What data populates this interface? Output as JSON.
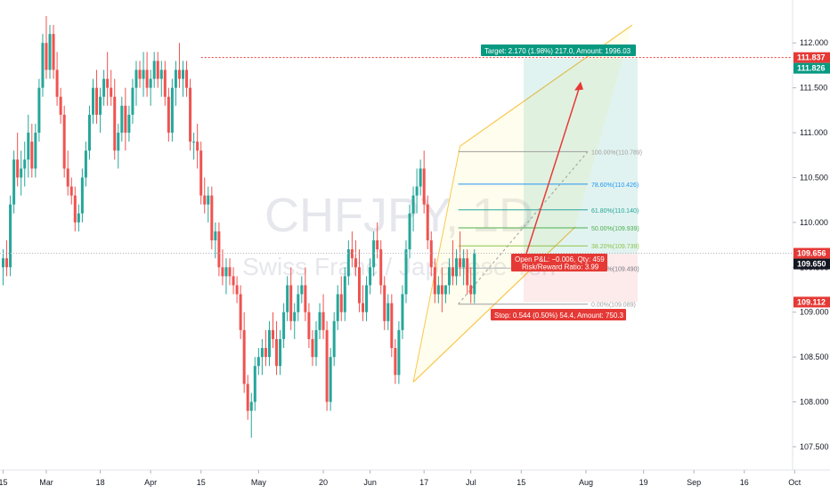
{
  "chart_data": {
    "type": "candlestick",
    "symbol_watermark": "CHFJPY, 1D",
    "watermark_subtitle": "Swiss Franc / Japanese Yen",
    "price_axis": {
      "min": 107.4,
      "max": 112.3,
      "ticks": [
        "112.000",
        "111.500",
        "111.000",
        "110.500",
        "110.000",
        "109.500",
        "109.000",
        "108.500",
        "108.000",
        "107.500"
      ]
    },
    "price_labels": [
      {
        "value": 111.837,
        "text": "111.837",
        "color": "#e53935"
      },
      {
        "value": 111.826,
        "text": "111.826",
        "color": "#089981"
      },
      {
        "value": 109.656,
        "text": "109.656",
        "color": "#e53935"
      },
      {
        "value": 109.65,
        "text": "109.650",
        "color": "#131722"
      },
      {
        "value": 109.112,
        "text": "109.112",
        "color": "#e53935"
      }
    ],
    "time_axis": {
      "labels": [
        {
          "text": "15",
          "bar": 0
        },
        {
          "text": "Mar",
          "bar": 12
        },
        {
          "text": "18",
          "bar": 27
        },
        {
          "text": "Apr",
          "bar": 41
        },
        {
          "text": "15",
          "bar": 55
        },
        {
          "text": "May",
          "bar": 71
        },
        {
          "text": "20",
          "bar": 89
        },
        {
          "text": "Jun",
          "bar": 102
        },
        {
          "text": "17",
          "bar": 117
        },
        {
          "text": "Jul",
          "bar": 130
        },
        {
          "text": "15",
          "bar": 144
        },
        {
          "text": "Aug",
          "bar": 162
        },
        {
          "text": "19",
          "bar": 178
        },
        {
          "text": "Sep",
          "bar": 192
        },
        {
          "text": "16",
          "bar": 206
        },
        {
          "text": "Oct",
          "bar": 220
        }
      ]
    },
    "candles": [
      [
        109.5,
        109.7,
        109.3,
        109.6
      ],
      [
        109.6,
        109.8,
        109.4,
        109.5
      ],
      [
        109.5,
        110.3,
        109.4,
        110.2
      ],
      [
        110.2,
        110.8,
        110.1,
        110.7
      ],
      [
        110.7,
        111.0,
        110.4,
        110.5
      ],
      [
        110.5,
        110.8,
        110.3,
        110.6
      ],
      [
        110.6,
        110.9,
        110.4,
        110.7
      ],
      [
        110.7,
        111.2,
        110.5,
        111.0
      ],
      [
        110.9,
        111.1,
        110.5,
        110.6
      ],
      [
        110.6,
        111.1,
        110.5,
        111.0
      ],
      [
        111.0,
        111.6,
        110.9,
        111.5
      ],
      [
        111.5,
        112.1,
        111.4,
        112.0
      ],
      [
        112.0,
        112.3,
        111.6,
        111.7
      ],
      [
        111.7,
        112.2,
        111.6,
        112.1
      ],
      [
        112.1,
        112.2,
        111.6,
        111.7
      ],
      [
        111.7,
        111.9,
        111.3,
        111.4
      ],
      [
        111.4,
        111.5,
        111.1,
        111.2
      ],
      [
        111.2,
        111.3,
        110.5,
        110.6
      ],
      [
        110.6,
        110.8,
        110.3,
        110.4
      ],
      [
        110.4,
        110.5,
        110.2,
        110.3
      ],
      [
        110.3,
        110.4,
        109.9,
        110.0
      ],
      [
        110.0,
        110.2,
        109.9,
        110.1
      ],
      [
        110.1,
        110.6,
        110.0,
        110.5
      ],
      [
        110.5,
        110.9,
        110.4,
        110.8
      ],
      [
        110.8,
        111.3,
        110.7,
        111.2
      ],
      [
        111.2,
        111.6,
        111.1,
        111.5
      ],
      [
        111.5,
        111.7,
        111.1,
        111.2
      ],
      [
        111.2,
        111.5,
        111.0,
        111.4
      ],
      [
        111.4,
        111.7,
        111.3,
        111.6
      ],
      [
        111.6,
        111.9,
        111.3,
        111.5
      ],
      [
        111.5,
        111.7,
        111.3,
        111.4
      ],
      [
        111.4,
        111.6,
        110.7,
        110.8
      ],
      [
        110.8,
        111.1,
        110.6,
        111.0
      ],
      [
        111.0,
        111.4,
        110.9,
        111.3
      ],
      [
        111.3,
        111.5,
        110.8,
        111.0
      ],
      [
        111.0,
        111.3,
        110.9,
        111.2
      ],
      [
        111.2,
        111.6,
        111.1,
        111.5
      ],
      [
        111.5,
        111.8,
        111.3,
        111.7
      ],
      [
        111.7,
        111.8,
        111.5,
        111.6
      ],
      [
        111.6,
        111.9,
        111.4,
        111.7
      ],
      [
        111.7,
        111.9,
        111.4,
        111.5
      ],
      [
        111.5,
        111.7,
        111.3,
        111.6
      ],
      [
        111.6,
        111.9,
        111.5,
        111.8
      ],
      [
        111.8,
        111.9,
        111.5,
        111.6
      ],
      [
        111.6,
        111.8,
        111.4,
        111.7
      ],
      [
        111.7,
        111.8,
        111.3,
        111.4
      ],
      [
        111.4,
        111.5,
        110.9,
        111.0
      ],
      [
        111.0,
        111.6,
        110.9,
        111.5
      ],
      [
        111.5,
        111.8,
        111.3,
        111.7
      ],
      [
        111.7,
        112.0,
        111.5,
        111.6
      ],
      [
        111.6,
        111.8,
        111.4,
        111.7
      ],
      [
        111.7,
        111.8,
        111.4,
        111.5
      ],
      [
        111.5,
        111.6,
        110.8,
        110.9
      ],
      [
        110.9,
        111.0,
        110.7,
        110.9
      ],
      [
        110.9,
        111.1,
        110.6,
        110.8
      ],
      [
        110.8,
        110.9,
        110.2,
        110.3
      ],
      [
        110.3,
        110.5,
        110.1,
        110.2
      ],
      [
        110.2,
        110.4,
        110.0,
        110.3
      ],
      [
        110.3,
        110.4,
        109.7,
        109.8
      ],
      [
        109.8,
        110.0,
        109.6,
        109.9
      ],
      [
        109.9,
        110.0,
        109.4,
        109.5
      ],
      [
        109.5,
        109.7,
        109.3,
        109.4
      ],
      [
        109.4,
        109.6,
        109.2,
        109.5
      ],
      [
        109.5,
        109.6,
        109.3,
        109.4
      ],
      [
        109.4,
        109.5,
        109.2,
        109.3
      ],
      [
        109.3,
        109.4,
        109.1,
        109.2
      ],
      [
        109.2,
        109.3,
        108.7,
        108.8
      ],
      [
        108.8,
        109.0,
        108.1,
        108.2
      ],
      [
        108.2,
        108.3,
        107.8,
        107.9
      ],
      [
        107.9,
        108.1,
        107.6,
        108.0
      ],
      [
        108.0,
        108.5,
        107.9,
        108.4
      ],
      [
        108.4,
        108.6,
        108.3,
        108.5
      ],
      [
        108.5,
        108.7,
        108.3,
        108.6
      ],
      [
        108.6,
        108.8,
        108.4,
        108.5
      ],
      [
        108.5,
        108.9,
        108.4,
        108.8
      ],
      [
        108.8,
        109.0,
        108.6,
        108.7
      ],
      [
        108.7,
        108.9,
        108.3,
        108.4
      ],
      [
        108.4,
        108.8,
        108.3,
        108.7
      ],
      [
        108.7,
        109.1,
        108.6,
        109.0
      ],
      [
        109.0,
        109.4,
        108.9,
        109.3
      ],
      [
        109.3,
        109.5,
        108.8,
        108.9
      ],
      [
        108.9,
        109.1,
        108.7,
        109.0
      ],
      [
        109.0,
        109.3,
        108.9,
        109.2
      ],
      [
        109.2,
        109.4,
        109.1,
        109.3
      ],
      [
        109.3,
        109.5,
        108.9,
        109.0
      ],
      [
        109.0,
        109.1,
        108.6,
        108.7
      ],
      [
        108.7,
        108.8,
        108.4,
        108.5
      ],
      [
        108.5,
        108.9,
        108.4,
        108.8
      ],
      [
        108.8,
        109.1,
        108.7,
        109.0
      ],
      [
        109.0,
        109.2,
        108.7,
        108.8
      ],
      [
        108.8,
        108.9,
        107.9,
        108.0
      ],
      [
        108.0,
        108.6,
        107.9,
        108.5
      ],
      [
        108.5,
        109.0,
        108.4,
        108.9
      ],
      [
        108.9,
        109.3,
        108.8,
        109.2
      ],
      [
        109.2,
        109.4,
        108.9,
        109.0
      ],
      [
        109.0,
        109.5,
        108.9,
        109.4
      ],
      [
        109.4,
        109.8,
        109.3,
        109.7
      ],
      [
        109.7,
        109.9,
        109.5,
        109.6
      ],
      [
        109.6,
        109.8,
        109.4,
        109.5
      ],
      [
        109.5,
        109.7,
        109.0,
        109.1
      ],
      [
        109.1,
        109.3,
        108.9,
        109.0
      ],
      [
        109.0,
        109.4,
        108.9,
        109.3
      ],
      [
        109.3,
        109.6,
        109.2,
        109.5
      ],
      [
        109.5,
        109.9,
        109.4,
        109.8
      ],
      [
        109.8,
        110.0,
        109.6,
        109.7
      ],
      [
        109.7,
        109.8,
        109.2,
        109.3
      ],
      [
        109.3,
        109.4,
        108.8,
        108.9
      ],
      [
        108.9,
        109.2,
        108.8,
        109.1
      ],
      [
        109.1,
        109.2,
        108.5,
        108.6
      ],
      [
        108.6,
        108.7,
        108.2,
        108.3
      ],
      [
        108.3,
        108.9,
        108.2,
        108.8
      ],
      [
        108.8,
        109.3,
        108.7,
        109.2
      ],
      [
        109.2,
        109.8,
        109.1,
        109.7
      ],
      [
        109.7,
        110.2,
        109.6,
        110.1
      ],
      [
        110.1,
        110.4,
        109.9,
        110.3
      ],
      [
        110.3,
        110.6,
        110.1,
        110.4
      ],
      [
        110.4,
        110.7,
        110.3,
        110.6
      ],
      [
        110.6,
        110.8,
        110.1,
        110.2
      ],
      [
        110.2,
        110.3,
        109.7,
        109.8
      ],
      [
        109.8,
        109.9,
        109.4,
        109.5
      ],
      [
        109.5,
        109.6,
        109.1,
        109.2
      ],
      [
        109.2,
        109.4,
        109.1,
        109.3
      ],
      [
        109.3,
        109.5,
        109.0,
        109.2
      ],
      [
        109.2,
        109.3,
        109.1,
        109.3
      ],
      [
        109.3,
        109.6,
        109.2,
        109.5
      ],
      [
        109.5,
        109.8,
        109.3,
        109.4
      ],
      [
        109.4,
        109.7,
        109.3,
        109.6
      ],
      [
        109.6,
        109.9,
        109.4,
        109.5
      ],
      [
        109.5,
        109.7,
        109.3,
        109.6
      ],
      [
        109.6,
        109.7,
        109.2,
        109.3
      ],
      [
        109.3,
        109.5,
        109.1,
        109.2
      ],
      [
        109.2,
        109.7,
        109.1,
        109.65
      ]
    ],
    "colors": {
      "up": "#26a69a",
      "down": "#ef5350"
    },
    "fibonacci": [
      {
        "text": "100.00%(110.789)",
        "value": 110.789,
        "color": "#9e9e9e"
      },
      {
        "text": "78.60%(110.426)",
        "value": 110.426,
        "color": "#2196f3"
      },
      {
        "text": "61.80%(110.140)",
        "value": 110.14,
        "color": "#26a69a"
      },
      {
        "text": "50.00%(109.939)",
        "value": 109.939,
        "color": "#4caf50"
      },
      {
        "text": "38.20%(109.739)",
        "value": 109.739,
        "color": "#8bc34a"
      },
      {
        "text": "23.60%(109.490)",
        "value": 109.49,
        "color": "#b2b5be"
      },
      {
        "text": "0.00%(109.089)",
        "value": 109.089,
        "color": "#9e9e9e"
      }
    ],
    "position": {
      "target_text": "Target: 2.170 (1.98%) 217.0, Amount: 1996.03",
      "stop_text": "Stop: 0.544 (0.50%) 54.4, Amount: 750.3",
      "pnl_text": "Open P&L: −0.006, Qty: 459",
      "ratio_text": "Risk/Reward Ratio: 3.99"
    }
  }
}
